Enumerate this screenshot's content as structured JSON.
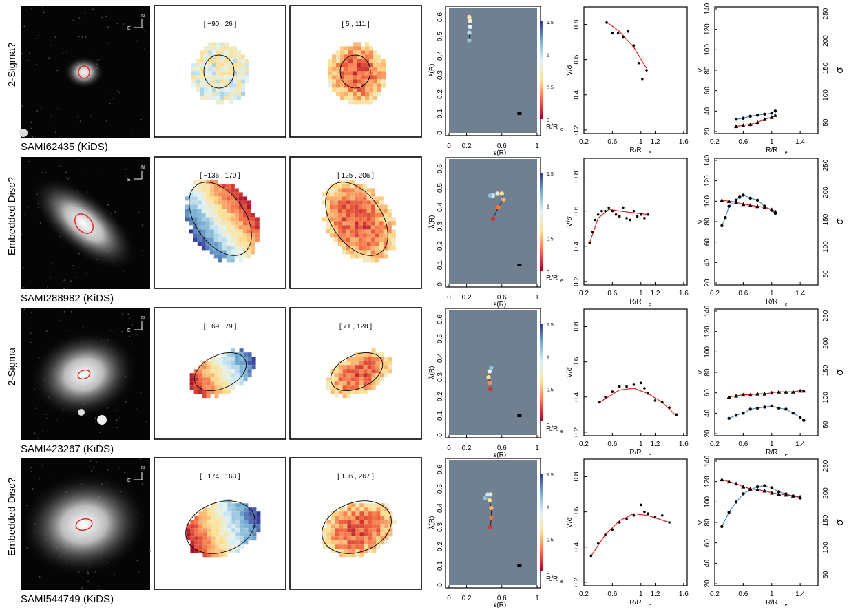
{
  "rows": [
    {
      "class_label": "2-Sigma?",
      "galaxy_id": "SAMI62435 (KiDS)",
      "vel_range": "[ −90 , 26 ]",
      "disp_range": "[ 5 , 111 ]",
      "lambda_track": [
        [
          0.23,
          0.6
        ],
        [
          0.24,
          0.58
        ],
        [
          0.24,
          0.55
        ],
        [
          0.23,
          0.52
        ],
        [
          0.23,
          0.48
        ]
      ],
      "v_sigma": [
        [
          0.52,
          0.81
        ],
        [
          0.6,
          0.75
        ],
        [
          0.68,
          0.75
        ],
        [
          0.75,
          0.73
        ],
        [
          0.82,
          0.76
        ],
        [
          0.9,
          0.68
        ],
        [
          0.97,
          0.58
        ],
        [
          1.02,
          0.49
        ],
        [
          1.08,
          0.54
        ]
      ],
      "v_sigma_fit": [
        [
          0.5,
          0.82
        ],
        [
          0.7,
          0.76
        ],
        [
          0.9,
          0.67
        ],
        [
          1.08,
          0.55
        ]
      ],
      "velocity": [
        [
          0.5,
          32
        ],
        [
          0.6,
          33
        ],
        [
          0.7,
          35
        ],
        [
          0.8,
          36
        ],
        [
          0.9,
          37
        ],
        [
          1.0,
          38
        ],
        [
          1.05,
          40
        ]
      ],
      "dispersion": [
        [
          0.5,
          25
        ],
        [
          0.6,
          26
        ],
        [
          0.7,
          27
        ],
        [
          0.8,
          29
        ],
        [
          0.9,
          32
        ],
        [
          1.0,
          34
        ],
        [
          1.05,
          36
        ]
      ]
    },
    {
      "class_label": "Embedded Disc?",
      "galaxy_id": "SAMI288982 (KiDS)",
      "vel_range": "[ −136 , 170 ]",
      "disp_range": "[ 125 , 206 ]",
      "lambda_track": [
        [
          0.5,
          0.34
        ],
        [
          0.56,
          0.4
        ],
        [
          0.62,
          0.44
        ],
        [
          0.6,
          0.47
        ],
        [
          0.55,
          0.47
        ],
        [
          0.5,
          0.46
        ],
        [
          0.47,
          0.46
        ]
      ],
      "v_sigma": [
        [
          0.28,
          0.42
        ],
        [
          0.32,
          0.48
        ],
        [
          0.36,
          0.55
        ],
        [
          0.4,
          0.58
        ],
        [
          0.45,
          0.6
        ],
        [
          0.5,
          0.6
        ],
        [
          0.55,
          0.62
        ],
        [
          0.6,
          0.6
        ],
        [
          0.65,
          0.58
        ],
        [
          0.7,
          0.57
        ],
        [
          0.75,
          0.62
        ],
        [
          0.8,
          0.56
        ],
        [
          0.85,
          0.55
        ],
        [
          0.9,
          0.6
        ],
        [
          0.95,
          0.57
        ],
        [
          1.0,
          0.58
        ],
        [
          1.05,
          0.56
        ],
        [
          1.1,
          0.58
        ]
      ],
      "v_sigma_fit": [
        [
          0.28,
          0.42
        ],
        [
          0.4,
          0.56
        ],
        [
          0.55,
          0.61
        ],
        [
          0.7,
          0.6
        ],
        [
          0.9,
          0.59
        ],
        [
          1.1,
          0.58
        ]
      ],
      "velocity": [
        [
          0.3,
          76
        ],
        [
          0.35,
          84
        ],
        [
          0.4,
          95
        ],
        [
          0.5,
          101
        ],
        [
          0.55,
          104
        ],
        [
          0.6,
          106
        ],
        [
          0.7,
          103
        ],
        [
          0.8,
          101
        ],
        [
          0.9,
          95
        ],
        [
          1.0,
          91
        ],
        [
          1.05,
          88
        ]
      ],
      "dispersion": [
        [
          0.3,
          101
        ],
        [
          0.4,
          100
        ],
        [
          0.5,
          99
        ],
        [
          0.6,
          97
        ],
        [
          0.7,
          96
        ],
        [
          0.8,
          95
        ],
        [
          0.9,
          94
        ],
        [
          1.0,
          92
        ],
        [
          1.05,
          90
        ]
      ]
    },
    {
      "class_label": "2-Sigma",
      "galaxy_id": "SAMI423267 (KiDS)",
      "vel_range": "[ −69 , 79 ]",
      "disp_range": "[ 71 , 128 ]",
      "lambda_track": [
        [
          0.47,
          0.24
        ],
        [
          0.46,
          0.27
        ],
        [
          0.45,
          0.3
        ],
        [
          0.46,
          0.33
        ],
        [
          0.48,
          0.35
        ]
      ],
      "v_sigma": [
        [
          0.42,
          0.37
        ],
        [
          0.5,
          0.4
        ],
        [
          0.6,
          0.43
        ],
        [
          0.7,
          0.46
        ],
        [
          0.8,
          0.46
        ],
        [
          0.9,
          0.47
        ],
        [
          1.0,
          0.48
        ],
        [
          1.05,
          0.45
        ],
        [
          1.1,
          0.42
        ],
        [
          1.2,
          0.38
        ],
        [
          1.3,
          0.37
        ],
        [
          1.4,
          0.34
        ],
        [
          1.5,
          0.3
        ]
      ],
      "v_sigma_fit": [
        [
          0.42,
          0.37
        ],
        [
          0.7,
          0.44
        ],
        [
          0.9,
          0.45
        ],
        [
          1.1,
          0.42
        ],
        [
          1.3,
          0.37
        ],
        [
          1.48,
          0.3
        ]
      ],
      "velocity": [
        [
          0.4,
          35
        ],
        [
          0.5,
          38
        ],
        [
          0.6,
          40
        ],
        [
          0.7,
          44
        ],
        [
          0.8,
          45
        ],
        [
          0.9,
          46
        ],
        [
          1.0,
          47
        ],
        [
          1.1,
          45
        ],
        [
          1.2,
          44
        ],
        [
          1.3,
          40
        ],
        [
          1.4,
          36
        ],
        [
          1.45,
          33
        ]
      ],
      "dispersion": [
        [
          0.4,
          56
        ],
        [
          0.5,
          57
        ],
        [
          0.6,
          58
        ],
        [
          0.7,
          58
        ],
        [
          0.8,
          59
        ],
        [
          0.9,
          59
        ],
        [
          1.0,
          60
        ],
        [
          1.1,
          61
        ],
        [
          1.2,
          61
        ],
        [
          1.3,
          61
        ],
        [
          1.4,
          62
        ],
        [
          1.45,
          62
        ]
      ]
    },
    {
      "class_label": "Embedded Disc?",
      "galaxy_id": "SAMI544749 (KiDS)",
      "vel_range": "[ −174 , 163 ]",
      "disp_range": "[ 136 , 267 ]",
      "lambda_track": [
        [
          0.47,
          0.3
        ],
        [
          0.48,
          0.35
        ],
        [
          0.48,
          0.4
        ],
        [
          0.46,
          0.44
        ],
        [
          0.47,
          0.47
        ],
        [
          0.44,
          0.47
        ],
        [
          0.41,
          0.45
        ]
      ],
      "v_sigma": [
        [
          0.3,
          0.35
        ],
        [
          0.4,
          0.42
        ],
        [
          0.5,
          0.47
        ],
        [
          0.6,
          0.5
        ],
        [
          0.7,
          0.54
        ],
        [
          0.8,
          0.56
        ],
        [
          0.9,
          0.58
        ],
        [
          1.0,
          0.64
        ],
        [
          1.05,
          0.6
        ],
        [
          1.1,
          0.59
        ],
        [
          1.2,
          0.57
        ],
        [
          1.3,
          0.58
        ],
        [
          1.4,
          0.54
        ]
      ],
      "v_sigma_fit": [
        [
          0.3,
          0.35
        ],
        [
          0.5,
          0.47
        ],
        [
          0.7,
          0.55
        ],
        [
          0.9,
          0.59
        ],
        [
          1.1,
          0.58
        ],
        [
          1.4,
          0.54
        ]
      ],
      "velocity": [
        [
          0.3,
          76
        ],
        [
          0.4,
          90
        ],
        [
          0.5,
          100
        ],
        [
          0.6,
          108
        ],
        [
          0.7,
          112
        ],
        [
          0.8,
          115
        ],
        [
          0.9,
          116
        ],
        [
          1.0,
          114
        ],
        [
          1.1,
          110
        ],
        [
          1.2,
          108
        ],
        [
          1.3,
          106
        ],
        [
          1.4,
          104
        ]
      ],
      "dispersion": [
        [
          0.3,
          122
        ],
        [
          0.4,
          120
        ],
        [
          0.5,
          118
        ],
        [
          0.6,
          115
        ],
        [
          0.7,
          113
        ],
        [
          0.8,
          112
        ],
        [
          0.9,
          111
        ],
        [
          1.0,
          109
        ],
        [
          1.1,
          108
        ],
        [
          1.2,
          107
        ],
        [
          1.3,
          106
        ],
        [
          1.4,
          105
        ]
      ]
    }
  ],
  "compass": {
    "north": "N",
    "east": "E"
  },
  "lambda_panel": {
    "xlabel": "ε(R)",
    "ylabel": "λ(R)",
    "xticks": [
      "0",
      "0.2",
      "0.6",
      "1"
    ],
    "yticks": [
      "0",
      "0.1",
      "0.2",
      "0.3",
      "0.4",
      "0.5",
      "0.6"
    ],
    "xlim": [
      0,
      1
    ],
    "ylim": [
      0,
      0.65
    ],
    "colorbar_ticks": [
      "1.5",
      "1",
      "0.5",
      "0"
    ],
    "colorbar_label": "R/R",
    "colorbar_label_sub": "e",
    "bg_color": "#708090"
  },
  "vsig_panel": {
    "xlabel": "R/R",
    "xlabel_sub": "e",
    "ylabel": "V/σ",
    "xticks": [
      "0.2",
      "0.6",
      "1",
      "1.2",
      "1.6"
    ],
    "yticks": [
      "0.2",
      "0.4",
      "0.6",
      "0.8"
    ],
    "xlim": [
      0.2,
      1.65
    ],
    "ylim": [
      0.18,
      0.9
    ]
  },
  "vprof_panel": {
    "xlabel": "R/R",
    "xlabel_sub": "e",
    "ylabel_left": "V",
    "ylabel_right": "σ",
    "xticks": [
      "0.2",
      "0.6",
      "1",
      "1.4"
    ],
    "yticks_left": [
      "20",
      "40",
      "60",
      "80",
      "100",
      "120",
      "140"
    ],
    "yticks_right": [
      "50",
      "100",
      "150",
      "200",
      "250"
    ],
    "xlim": [
      0.2,
      1.65
    ],
    "ylim_left": [
      18,
      142
    ]
  },
  "chart_data": [
    {
      "type": "scatter",
      "title": "",
      "xlabel": "ε(R)",
      "ylabel": "λ(R)",
      "xlim": [
        0,
        1
      ],
      "ylim": [
        0,
        0.65
      ],
      "series": [
        {
          "name": "SAMI62435",
          "x": [
            0.23,
            0.24,
            0.24,
            0.23,
            0.23
          ],
          "y": [
            0.6,
            0.58,
            0.55,
            0.52,
            0.48
          ]
        },
        {
          "name": "SAMI288982",
          "x": [
            0.5,
            0.56,
            0.62,
            0.6,
            0.55,
            0.5,
            0.47
          ],
          "y": [
            0.34,
            0.4,
            0.44,
            0.47,
            0.47,
            0.46,
            0.46
          ]
        },
        {
          "name": "SAMI423267",
          "x": [
            0.47,
            0.46,
            0.45,
            0.46,
            0.48
          ],
          "y": [
            0.24,
            0.27,
            0.3,
            0.33,
            0.35
          ]
        },
        {
          "name": "SAMI544749",
          "x": [
            0.47,
            0.48,
            0.48,
            0.46,
            0.47,
            0.44,
            0.41
          ],
          "y": [
            0.3,
            0.35,
            0.4,
            0.44,
            0.47,
            0.47,
            0.45
          ]
        }
      ]
    },
    {
      "type": "scatter",
      "title": "",
      "xlabel": "R/Re",
      "ylabel": "V/σ",
      "xlim": [
        0.2,
        1.65
      ],
      "ylim": [
        0.18,
        0.9
      ]
    },
    {
      "type": "line",
      "title": "",
      "xlabel": "R/Re",
      "ylabel": "V",
      "y2label": "σ",
      "xlim": [
        0.2,
        1.65
      ],
      "ylim": [
        18,
        142
      ]
    }
  ]
}
